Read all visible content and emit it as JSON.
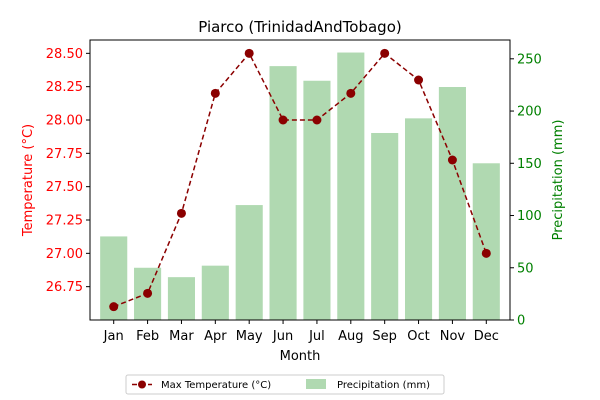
{
  "chart_data": {
    "type": "bar+line",
    "title": "Piarco (TrinidadAndTobago)",
    "xlabel": "Month",
    "ylabel_left": "Temperature (°C)",
    "ylabel_right": "Precipitation (mm)",
    "categories": [
      "Jan",
      "Feb",
      "Mar",
      "Apr",
      "May",
      "Jun",
      "Jul",
      "Aug",
      "Sep",
      "Oct",
      "Nov",
      "Dec"
    ],
    "series": [
      {
        "name": "Max Temperature (°C)",
        "type": "line",
        "axis": "left",
        "color": "#8b0000",
        "values": [
          26.6,
          26.7,
          27.3,
          28.2,
          28.5,
          28.0,
          28.0,
          28.2,
          28.5,
          28.3,
          27.7,
          27.0
        ]
      },
      {
        "name": "Precipitation (mm)",
        "type": "bar",
        "axis": "right",
        "color": "#b0d9b1",
        "values": [
          80,
          50,
          41,
          52,
          110,
          243,
          229,
          256,
          179,
          193,
          223,
          150
        ]
      }
    ],
    "ylim_left": [
      26.5,
      28.6
    ],
    "yticks_left": [
      "26.75",
      "27.00",
      "27.25",
      "27.50",
      "27.75",
      "28.00",
      "28.25",
      "28.50"
    ],
    "ylim_right": [
      0,
      268
    ],
    "yticks_right": [
      "0",
      "50",
      "100",
      "150",
      "200",
      "250"
    ],
    "left_axis_color": "#ff0000",
    "right_axis_color": "#008000",
    "grid": false,
    "legend_position": "bottom-center"
  }
}
